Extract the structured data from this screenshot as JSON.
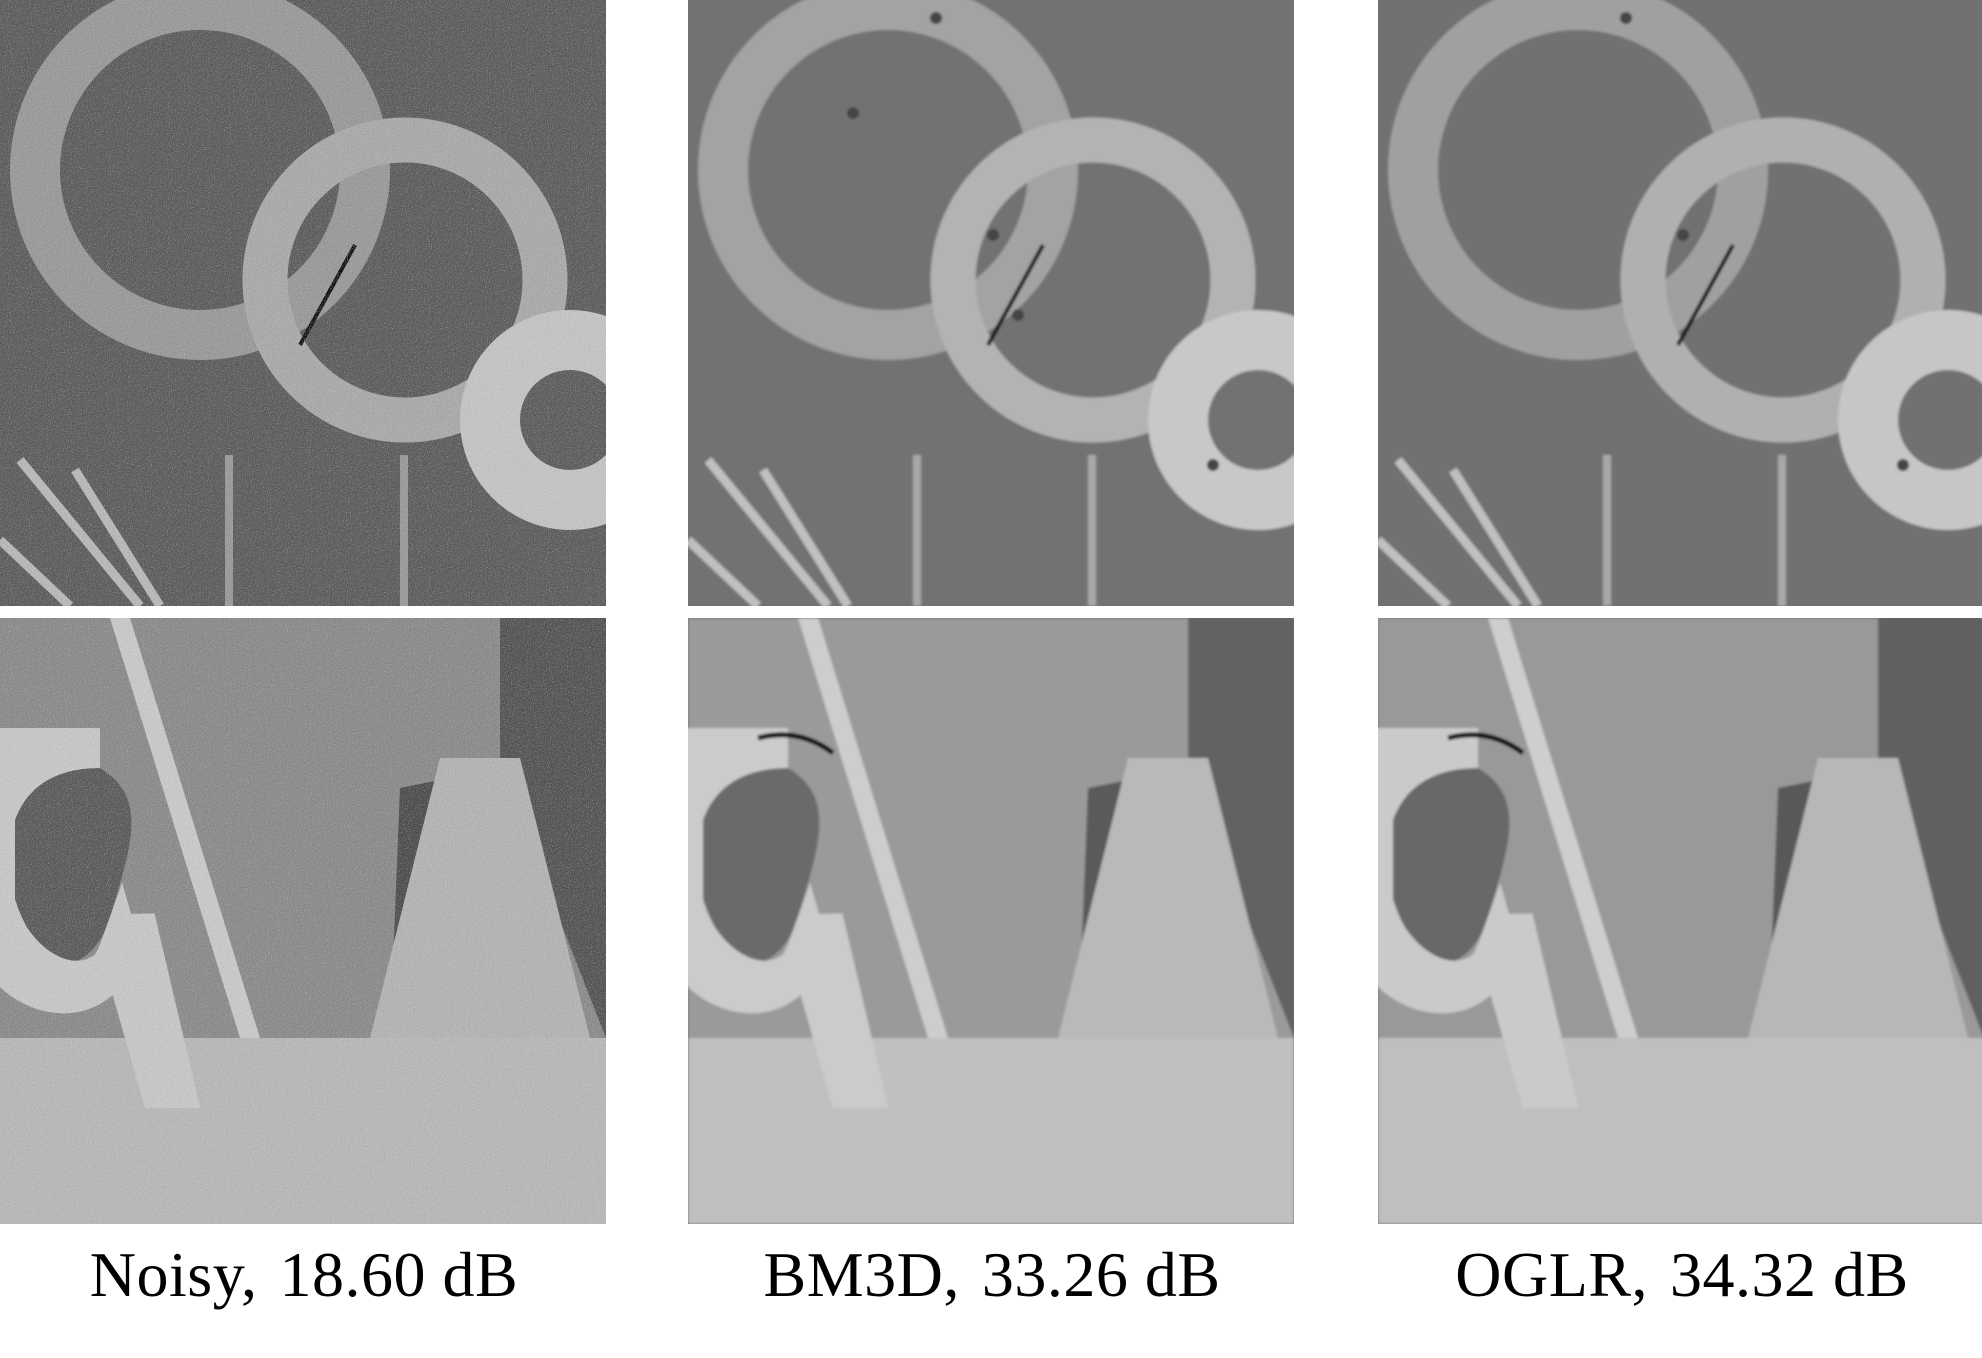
{
  "panels": [
    {
      "method": "Noisy",
      "psnr": "18.60 dB",
      "style": "noisy"
    },
    {
      "method": "BM3D",
      "psnr": "33.26 dB",
      "style": "smooth"
    },
    {
      "method": "OGLR",
      "psnr": "34.32 dB",
      "style": "smooth"
    }
  ]
}
